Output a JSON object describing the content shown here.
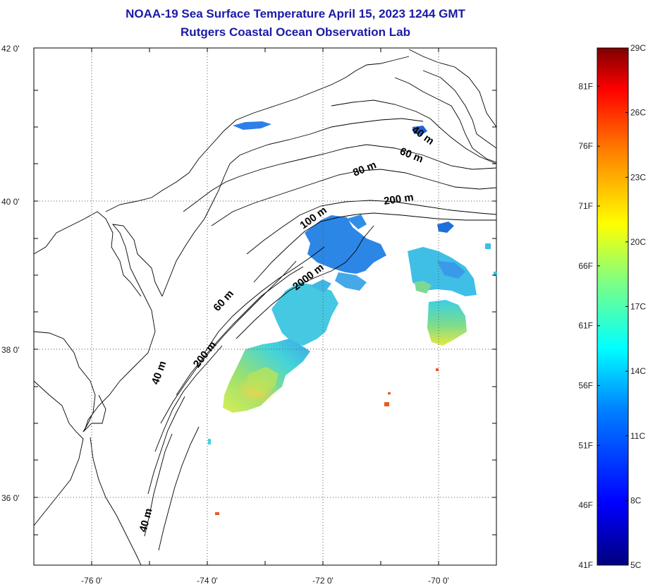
{
  "title_line1": "NOAA-19 Sea Surface Temperature April 15, 2023 1244 GMT",
  "title_line2": "Rutgers Coastal Ocean Observation Lab",
  "lat_labels": [
    "42 0'",
    "40 0'",
    "38 0'",
    "36 0'"
  ],
  "lon_labels": [
    "-76 0'",
    "-74 0'",
    "-72 0'",
    "-70 0'"
  ],
  "contour_labels": [
    "40 m",
    "60 m",
    "80 m",
    "200 m",
    "100 m",
    "2000 m",
    "60 m",
    "200 m",
    "40 m",
    "40 m"
  ],
  "colorbar": {
    "celsius_labels": [
      "29C",
      "26C",
      "23C",
      "20C",
      "17C",
      "14C",
      "11C",
      "8C",
      "5C"
    ],
    "fahrenheit_labels": [
      "81F",
      "76F",
      "71F",
      "66F",
      "61F",
      "56F",
      "51F",
      "46F",
      "41F"
    ],
    "colors": [
      "#00007f",
      "#0000ff",
      "#0080ff",
      "#00ffff",
      "#80ff80",
      "#ffff00",
      "#ff8000",
      "#ff0000",
      "#7f0000"
    ]
  },
  "colors": {
    "title": "#1a1aa6",
    "ocean_cool": "#2a8be8",
    "ocean_mid": "#3fd3e8",
    "ocean_warm": "#d8e84a",
    "warm_spot": "#e8602a"
  }
}
